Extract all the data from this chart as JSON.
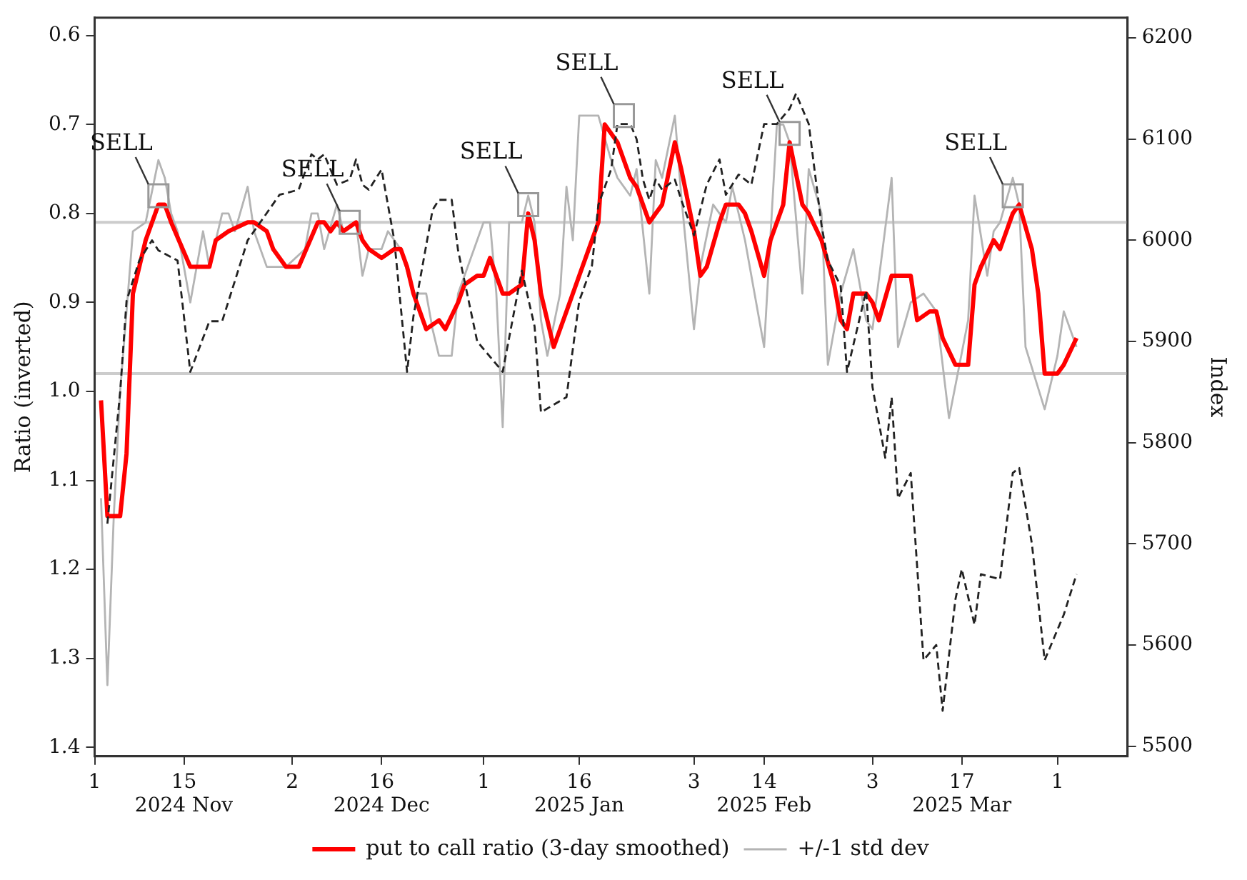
{
  "chart_data": {
    "type": "line",
    "ylabel": "Ratio (inverted)",
    "y2label": "Index",
    "xlim": [
      "2024-11-01",
      "2025-04-12"
    ],
    "xticks": [
      {
        "value": "2024-11-01",
        "label": "1"
      },
      {
        "value": "2024-11-15",
        "label": "15\n2024 Nov"
      },
      {
        "value": "2024-12-02",
        "label": "2"
      },
      {
        "value": "2024-12-16",
        "label": "16\n2024 Dec"
      },
      {
        "value": "2025-01-01",
        "label": "1"
      },
      {
        "value": "2025-01-16",
        "label": "16\n2025 Jan"
      },
      {
        "value": "2025-02-03",
        "label": "3"
      },
      {
        "value": "2025-02-14",
        "label": "14\n2025 Feb"
      },
      {
        "value": "2025-03-03",
        "label": "3"
      },
      {
        "value": "2025-03-17",
        "label": "17\n2025 Mar"
      },
      {
        "value": "2025-04-01",
        "label": "1"
      }
    ],
    "ylim": [
      1.41,
      0.58
    ],
    "yticks": [
      0.6,
      0.7,
      0.8,
      0.9,
      {
        "value": 1,
        "label": "1.0"
      },
      1.1,
      1.2,
      1.3,
      1.4
    ],
    "y2lim": [
      5490,
      6220
    ],
    "y2ticks": [
      5500,
      5600,
      5700,
      5800,
      5900,
      6000,
      6100,
      6200
    ],
    "grid": false,
    "legend": "bottom",
    "marker": "none",
    "ref_lines": [
      {
        "axis": "y",
        "value": 0.81,
        "color": "#cccccc"
      },
      {
        "axis": "y",
        "value": 0.98,
        "color": "#cccccc"
      }
    ],
    "annotations": [
      {
        "text": "SELL",
        "x": "2024-11-11",
        "y": 0.78
      },
      {
        "text": "SELL",
        "x": "2024-12-11",
        "y": 0.81
      },
      {
        "text": "SELL",
        "x": "2025-01-08",
        "y": 0.79
      },
      {
        "text": "SELL",
        "x": "2025-01-23",
        "y": 0.69
      },
      {
        "text": "SELL",
        "x": "2025-02-18",
        "y": 0.71
      },
      {
        "text": "SELL",
        "x": "2025-03-25",
        "y": 0.78
      }
    ],
    "series": [
      {
        "name": "+/-1 std dev",
        "color": "#b4b4b4",
        "line_style": "solid",
        "x": [
          "2024-11-02",
          "2024-11-03",
          "2024-11-04",
          "2024-11-05",
          "2024-11-06",
          "2024-11-07",
          "2024-11-09",
          "2024-11-11",
          "2024-11-12",
          "2024-11-13",
          "2024-11-14",
          "2024-11-15",
          "2024-11-16",
          "2024-11-18",
          "2024-11-19",
          "2024-11-21",
          "2024-11-22",
          "2024-11-23",
          "2024-11-25",
          "2024-11-26",
          "2024-11-28",
          "2024-12-01",
          "2024-12-04",
          "2024-12-05",
          "2024-12-06",
          "2024-12-07",
          "2024-12-09",
          "2024-12-10",
          "2024-12-12",
          "2024-12-13",
          "2024-12-14",
          "2024-12-16",
          "2024-12-17",
          "2024-12-19",
          "2024-12-21",
          "2024-12-23",
          "2024-12-24",
          "2024-12-25",
          "2024-12-27",
          "2024-12-28",
          "2024-12-30",
          "2025-01-01",
          "2025-01-02",
          "2025-01-03",
          "2025-01-04",
          "2025-01-05",
          "2025-01-07",
          "2025-01-08",
          "2025-01-09",
          "2025-01-10",
          "2025-01-11",
          "2025-01-13",
          "2025-01-14",
          "2025-01-15",
          "2025-01-16",
          "2025-01-18",
          "2025-01-19",
          "2025-01-21",
          "2025-01-22",
          "2025-01-24",
          "2025-01-25",
          "2025-01-27",
          "2025-01-28",
          "2025-01-29",
          "2025-01-31",
          "2025-02-01",
          "2025-02-03",
          "2025-02-04",
          "2025-02-06",
          "2025-02-08",
          "2025-02-09",
          "2025-02-11",
          "2025-02-14",
          "2025-02-16",
          "2025-02-17",
          "2025-02-18",
          "2025-02-20",
          "2025-02-21",
          "2025-02-23",
          "2025-02-24",
          "2025-02-26",
          "2025-02-28",
          "2025-03-02",
          "2025-03-03",
          "2025-03-06",
          "2025-03-07",
          "2025-03-09",
          "2025-03-11",
          "2025-03-13",
          "2025-03-15",
          "2025-03-18",
          "2025-03-19",
          "2025-03-21",
          "2025-03-22",
          "2025-03-23",
          "2025-03-25",
          "2025-03-26",
          "2025-03-27",
          "2025-03-30",
          "2025-04-01",
          "2025-04-02",
          "2025-04-04"
        ],
        "values": [
          1.12,
          1.33,
          1.14,
          1.0,
          0.91,
          0.82,
          0.81,
          0.74,
          0.76,
          0.8,
          0.82,
          0.86,
          0.9,
          0.82,
          0.86,
          0.8,
          0.8,
          0.82,
          0.77,
          0.82,
          0.86,
          0.86,
          0.84,
          0.8,
          0.8,
          0.84,
          0.79,
          0.82,
          0.81,
          0.87,
          0.84,
          0.84,
          0.82,
          0.84,
          0.89,
          0.89,
          0.93,
          0.96,
          0.96,
          0.89,
          0.85,
          0.81,
          0.81,
          0.89,
          1.04,
          0.81,
          0.81,
          0.78,
          0.81,
          0.92,
          0.96,
          0.89,
          0.77,
          0.83,
          0.69,
          0.69,
          0.69,
          0.74,
          0.76,
          0.78,
          0.75,
          0.89,
          0.74,
          0.76,
          0.69,
          0.78,
          0.93,
          0.86,
          0.79,
          0.81,
          0.77,
          0.83,
          0.95,
          0.7,
          0.7,
          0.72,
          0.89,
          0.75,
          0.8,
          0.97,
          0.89,
          0.84,
          0.92,
          0.93,
          0.76,
          0.95,
          0.9,
          0.89,
          0.91,
          1.03,
          0.92,
          0.78,
          0.87,
          0.82,
          0.81,
          0.76,
          0.79,
          0.95,
          1.02,
          0.96,
          0.91,
          0.95
        ]
      },
      {
        "name": "put to call ratio (3-day smoothed)",
        "color": "#ff0000",
        "line_style": "solid",
        "x": [
          "2024-11-02",
          "2024-11-03",
          "2024-11-05",
          "2024-11-06",
          "2024-11-07",
          "2024-11-09",
          "2024-11-11",
          "2024-11-12",
          "2024-11-13",
          "2024-11-16",
          "2024-11-17",
          "2024-11-19",
          "2024-11-20",
          "2024-11-22",
          "2024-11-25",
          "2024-11-26",
          "2024-11-28",
          "2024-11-29",
          "2024-12-01",
          "2024-12-03",
          "2024-12-06",
          "2024-12-07",
          "2024-12-08",
          "2024-12-09",
          "2024-12-10",
          "2024-12-12",
          "2024-12-13",
          "2024-12-14",
          "2024-12-16",
          "2024-12-18",
          "2024-12-19",
          "2024-12-20",
          "2024-12-21",
          "2024-12-23",
          "2024-12-25",
          "2024-12-26",
          "2024-12-28",
          "2024-12-29",
          "2024-12-31",
          "2025-01-01",
          "2025-01-02",
          "2025-01-04",
          "2025-01-05",
          "2025-01-07",
          "2025-01-08",
          "2025-01-09",
          "2025-01-10",
          "2025-01-12",
          "2025-01-14",
          "2025-01-16",
          "2025-01-18",
          "2025-01-19",
          "2025-01-20",
          "2025-01-22",
          "2025-01-24",
          "2025-01-25",
          "2025-01-27",
          "2025-01-28",
          "2025-01-29",
          "2025-01-31",
          "2025-02-01",
          "2025-02-03",
          "2025-02-04",
          "2025-02-05",
          "2025-02-07",
          "2025-02-08",
          "2025-02-10",
          "2025-02-11",
          "2025-02-12",
          "2025-02-14",
          "2025-02-15",
          "2025-02-17",
          "2025-02-18",
          "2025-02-20",
          "2025-02-21",
          "2025-02-23",
          "2025-02-25",
          "2025-02-26",
          "2025-02-27",
          "2025-02-28",
          "2025-03-02",
          "2025-03-03",
          "2025-03-04",
          "2025-03-06",
          "2025-03-09",
          "2025-03-10",
          "2025-03-12",
          "2025-03-13",
          "2025-03-14",
          "2025-03-16",
          "2025-03-18",
          "2025-03-19",
          "2025-03-20",
          "2025-03-22",
          "2025-03-23",
          "2025-03-25",
          "2025-03-26",
          "2025-03-28",
          "2025-03-29",
          "2025-03-30",
          "2025-04-01",
          "2025-04-02",
          "2025-04-04"
        ],
        "values": [
          1.01,
          1.14,
          1.14,
          1.07,
          0.89,
          0.83,
          0.79,
          0.79,
          0.81,
          0.86,
          0.86,
          0.86,
          0.83,
          0.82,
          0.81,
          0.81,
          0.82,
          0.84,
          0.86,
          0.86,
          0.81,
          0.81,
          0.82,
          0.81,
          0.82,
          0.81,
          0.83,
          0.84,
          0.85,
          0.84,
          0.84,
          0.86,
          0.89,
          0.93,
          0.92,
          0.93,
          0.9,
          0.88,
          0.87,
          0.87,
          0.85,
          0.89,
          0.89,
          0.88,
          0.8,
          0.83,
          0.89,
          0.95,
          0.91,
          0.87,
          0.83,
          0.81,
          0.7,
          0.72,
          0.76,
          0.77,
          0.81,
          0.8,
          0.79,
          0.72,
          0.75,
          0.82,
          0.87,
          0.86,
          0.81,
          0.79,
          0.79,
          0.8,
          0.82,
          0.87,
          0.83,
          0.79,
          0.72,
          0.79,
          0.8,
          0.83,
          0.88,
          0.92,
          0.93,
          0.89,
          0.89,
          0.9,
          0.92,
          0.87,
          0.87,
          0.92,
          0.91,
          0.91,
          0.94,
          0.97,
          0.97,
          0.88,
          0.86,
          0.83,
          0.84,
          0.8,
          0.79,
          0.84,
          0.89,
          0.98,
          0.98,
          0.97,
          0.94
        ]
      },
      {
        "color": "#222222",
        "line_style": "dashed",
        "axis": "y2",
        "x": [
          "2024-11-03",
          "2024-11-05",
          "2024-11-06",
          "2024-11-08",
          "2024-11-10",
          "2024-11-11",
          "2024-11-14",
          "2024-11-16",
          "2024-11-19",
          "2024-11-21",
          "2024-11-25",
          "2024-11-30",
          "2024-12-03",
          "2024-12-05",
          "2024-12-06",
          "2024-12-07",
          "2024-12-09",
          "2024-12-11",
          "2024-12-12",
          "2024-12-13",
          "2024-12-14",
          "2024-12-16",
          "2024-12-18",
          "2024-12-20",
          "2024-12-21",
          "2024-12-24",
          "2024-12-25",
          "2024-12-27",
          "2024-12-28",
          "2024-12-31",
          "2025-01-04",
          "2025-01-07",
          "2025-01-09",
          "2025-01-10",
          "2025-01-14",
          "2025-01-16",
          "2025-01-18",
          "2025-01-19",
          "2025-01-21",
          "2025-01-22",
          "2025-01-24",
          "2025-01-25",
          "2025-01-26",
          "2025-01-27",
          "2025-01-28",
          "2025-01-29",
          "2025-01-31",
          "2025-02-01",
          "2025-02-03",
          "2025-02-05",
          "2025-02-07",
          "2025-02-08",
          "2025-02-10",
          "2025-02-12",
          "2025-02-14",
          "2025-02-16",
          "2025-02-18",
          "2025-02-19",
          "2025-02-21",
          "2025-02-23",
          "2025-02-24",
          "2025-02-26",
          "2025-02-27",
          "2025-03-02",
          "2025-03-03",
          "2025-03-05",
          "2025-03-06",
          "2025-03-07",
          "2025-03-09",
          "2025-03-11",
          "2025-03-13",
          "2025-03-14",
          "2025-03-16",
          "2025-03-17",
          "2025-03-19",
          "2025-03-20",
          "2025-03-23",
          "2025-03-25",
          "2025-03-26",
          "2025-03-28",
          "2025-03-30",
          "2025-04-02",
          "2025-04-04"
        ],
        "values": [
          5720,
          5850,
          5940,
          5980,
          6000,
          5990,
          5980,
          5870,
          5920,
          5920,
          6000,
          6045,
          6050,
          6085,
          6080,
          6085,
          6055,
          6060,
          6080,
          6055,
          6050,
          6070,
          6000,
          5870,
          5925,
          6030,
          6040,
          6040,
          5990,
          5900,
          5870,
          5970,
          5915,
          5830,
          5845,
          5940,
          5975,
          6035,
          6070,
          6115,
          6115,
          6100,
          6060,
          6040,
          6060,
          6050,
          6060,
          6040,
          6005,
          6055,
          6080,
          6045,
          6065,
          6055,
          6115,
          6115,
          6130,
          6145,
          6115,
          6015,
          5980,
          5955,
          5870,
          5950,
          5855,
          5785,
          5845,
          5745,
          5770,
          5585,
          5600,
          5535,
          5645,
          5675,
          5620,
          5670,
          5665,
          5770,
          5775,
          5700,
          5585,
          5630,
          5670
        ]
      }
    ]
  }
}
